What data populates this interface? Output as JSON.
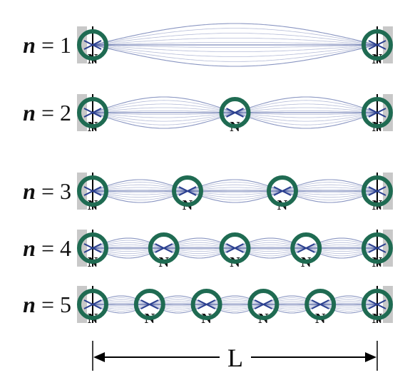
{
  "diagram": {
    "node_marker_label": "N",
    "length_label": "L",
    "node_circle_color": "#1f6b52",
    "wave_color": "#2a3f8f",
    "wall_color": "#c8c8c8",
    "modes": [
      {
        "label": "n = 1",
        "n": 1
      },
      {
        "label": "n = 2",
        "n": 2
      },
      {
        "label": "n = 3",
        "n": 3
      },
      {
        "label": "n = 4",
        "n": 4
      },
      {
        "label": "n = 5",
        "n": 5
      }
    ]
  }
}
